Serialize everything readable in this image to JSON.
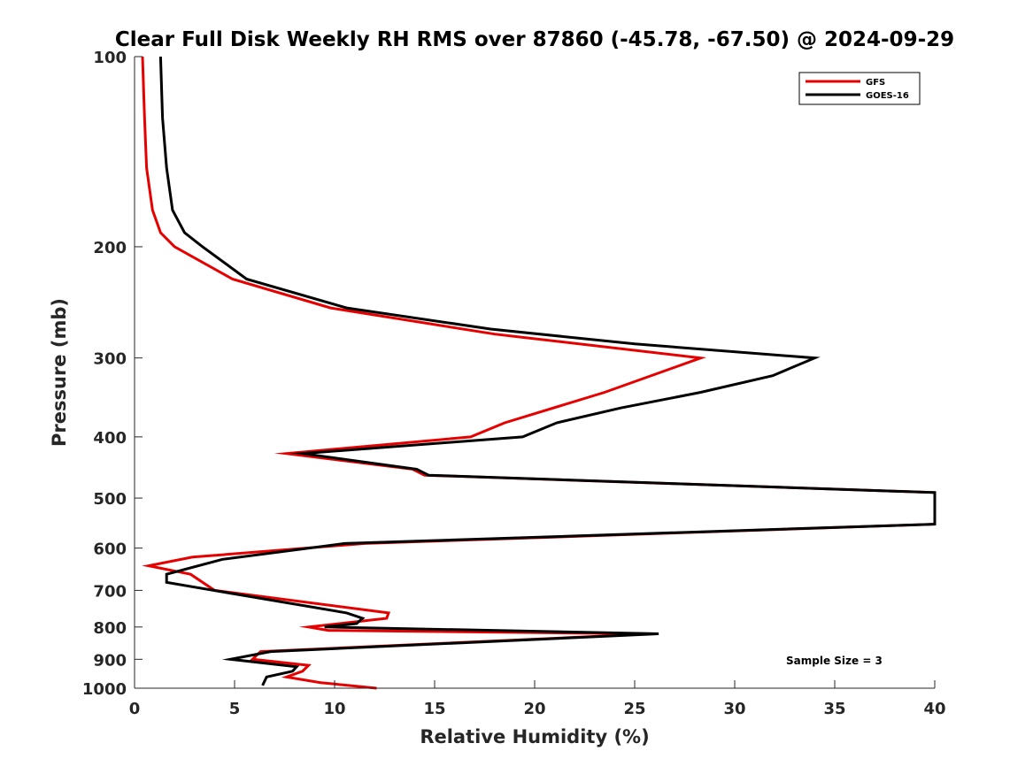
{
  "chart_data": {
    "type": "line",
    "title": "Clear Full Disk Weekly RH RMS over 87860 (-45.78, -67.50) @ 2024-09-29",
    "xlabel": "Relative Humidity (%)",
    "ylabel": "Pressure (mb)",
    "xlim": [
      0,
      40
    ],
    "ylim": [
      100,
      1000
    ],
    "y_scale": "log",
    "y_reversed": true,
    "x_ticks": [
      "0",
      "5",
      "10",
      "15",
      "20",
      "25",
      "30",
      "35",
      "40"
    ],
    "y_ticks": [
      "100",
      "200",
      "300",
      "400",
      "500",
      "600",
      "700",
      "800",
      "900",
      "1000"
    ],
    "grid": false,
    "legend_position": "top-right",
    "annotation": "Sample Size = 3",
    "series": [
      {
        "name": "GFS",
        "color": "#e60000",
        "points": [
          [
            0.4,
            100
          ],
          [
            0.5,
            125
          ],
          [
            0.6,
            150
          ],
          [
            0.9,
            175
          ],
          [
            1.3,
            190
          ],
          [
            2.0,
            200
          ],
          [
            4.9,
            225
          ],
          [
            9.8,
            250
          ],
          [
            18.0,
            275
          ],
          [
            28.3,
            300
          ],
          [
            23.5,
            340
          ],
          [
            18.5,
            380
          ],
          [
            16.8,
            400
          ],
          [
            7.6,
            425
          ],
          [
            13.9,
            450
          ],
          [
            14.5,
            460
          ],
          [
            40,
            490
          ],
          [
            40,
            550
          ],
          [
            11.5,
            590
          ],
          [
            2.9,
            620
          ],
          [
            0.7,
            640
          ],
          [
            2.8,
            660
          ],
          [
            4.0,
            700
          ],
          [
            12.7,
            760
          ],
          [
            12.6,
            775
          ],
          [
            8.7,
            800
          ],
          [
            9.7,
            810
          ],
          [
            25.9,
            820
          ],
          [
            6.3,
            875
          ],
          [
            5.9,
            900
          ],
          [
            8.7,
            920
          ],
          [
            8.4,
            940
          ],
          [
            7.6,
            960
          ],
          [
            9.3,
            980
          ],
          [
            12.1,
            1000
          ]
        ]
      },
      {
        "name": "GOES-16",
        "color": "#000000",
        "points": [
          [
            1.3,
            100
          ],
          [
            1.4,
            125
          ],
          [
            1.6,
            150
          ],
          [
            1.9,
            175
          ],
          [
            2.5,
            190
          ],
          [
            3.4,
            200
          ],
          [
            5.6,
            225
          ],
          [
            10.6,
            250
          ],
          [
            17.8,
            270
          ],
          [
            25.0,
            285
          ],
          [
            34.0,
            300
          ],
          [
            31.9,
            320
          ],
          [
            28.3,
            340
          ],
          [
            24.3,
            360
          ],
          [
            21.1,
            380
          ],
          [
            19.4,
            400
          ],
          [
            8.4,
            425
          ],
          [
            14.1,
            450
          ],
          [
            14.7,
            460
          ],
          [
            40,
            490
          ],
          [
            40,
            550
          ],
          [
            10.5,
            590
          ],
          [
            4.4,
            625
          ],
          [
            1.6,
            660
          ],
          [
            1.6,
            680
          ],
          [
            10.6,
            760
          ],
          [
            11.4,
            775
          ],
          [
            11.1,
            790
          ],
          [
            9.5,
            800
          ],
          [
            26.2,
            820
          ],
          [
            6.8,
            875
          ],
          [
            4.8,
            900
          ],
          [
            8.1,
            925
          ],
          [
            7.9,
            940
          ],
          [
            6.6,
            960
          ],
          [
            6.4,
            990
          ]
        ]
      }
    ]
  }
}
